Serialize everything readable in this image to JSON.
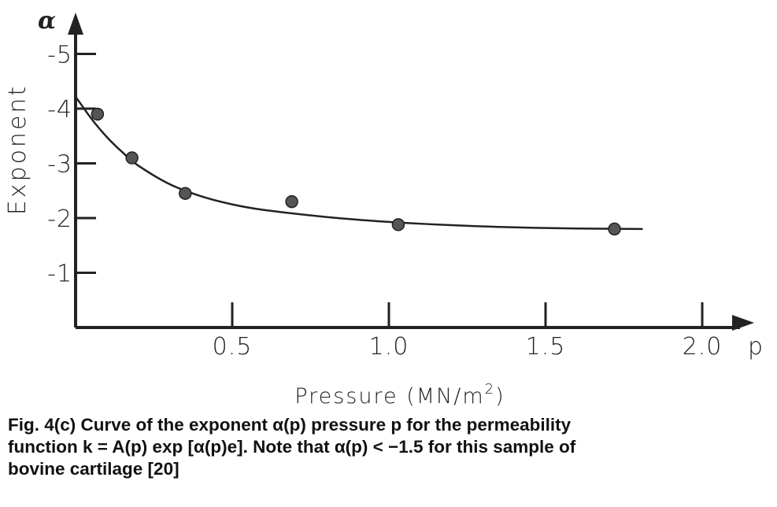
{
  "caption": {
    "line1": "Fig. 4(c)   Curve of the exponent α(p) pressure p for the permeability",
    "line2": "function k = A(p) exp [α(p)e]. Note that α(p) < −1.5 for this sample of",
    "line3": "bovine cartilage [20]"
  },
  "chart_data": {
    "type": "scatter",
    "xlabel": "Pressure (MN/m²)",
    "xlabel_main": "Pressure (MN/m",
    "xlabel_sup": "2",
    "xlabel_end": ")",
    "ylabel": "Exponent",
    "x_axis_letter": "p",
    "y_axis_letter": "α",
    "xlim": [
      0,
      2.15
    ],
    "ylim": [
      0,
      5.7
    ],
    "x_ticks": [
      {
        "value": 0.5,
        "label": "0.5"
      },
      {
        "value": 1.0,
        "label": "1.0"
      },
      {
        "value": 1.5,
        "label": "1.5"
      },
      {
        "value": 2.0,
        "label": "2.0"
      }
    ],
    "y_ticks": [
      {
        "value": 1,
        "label": "-1"
      },
      {
        "value": 2,
        "label": "-2"
      },
      {
        "value": 3,
        "label": "-3"
      },
      {
        "value": 4,
        "label": "-4"
      },
      {
        "value": 5,
        "label": "-5"
      }
    ],
    "points": [
      {
        "x": 0.07,
        "y": 3.9
      },
      {
        "x": 0.18,
        "y": 3.1
      },
      {
        "x": 0.35,
        "y": 2.45
      },
      {
        "x": 0.69,
        "y": 2.3
      },
      {
        "x": 1.03,
        "y": 1.88
      },
      {
        "x": 1.72,
        "y": 1.8
      }
    ],
    "curve": [
      {
        "x": 0.0,
        "y": 4.22
      },
      {
        "x": 0.05,
        "y": 3.82
      },
      {
        "x": 0.1,
        "y": 3.48
      },
      {
        "x": 0.15,
        "y": 3.2
      },
      {
        "x": 0.2,
        "y": 2.96
      },
      {
        "x": 0.3,
        "y": 2.62
      },
      {
        "x": 0.4,
        "y": 2.4
      },
      {
        "x": 0.5,
        "y": 2.25
      },
      {
        "x": 0.6,
        "y": 2.15
      },
      {
        "x": 0.8,
        "y": 2.02
      },
      {
        "x": 1.0,
        "y": 1.93
      },
      {
        "x": 1.2,
        "y": 1.87
      },
      {
        "x": 1.4,
        "y": 1.83
      },
      {
        "x": 1.6,
        "y": 1.81
      },
      {
        "x": 1.81,
        "y": 1.8
      }
    ],
    "colors": {
      "ink": "#222222",
      "marker": "#555555"
    }
  }
}
